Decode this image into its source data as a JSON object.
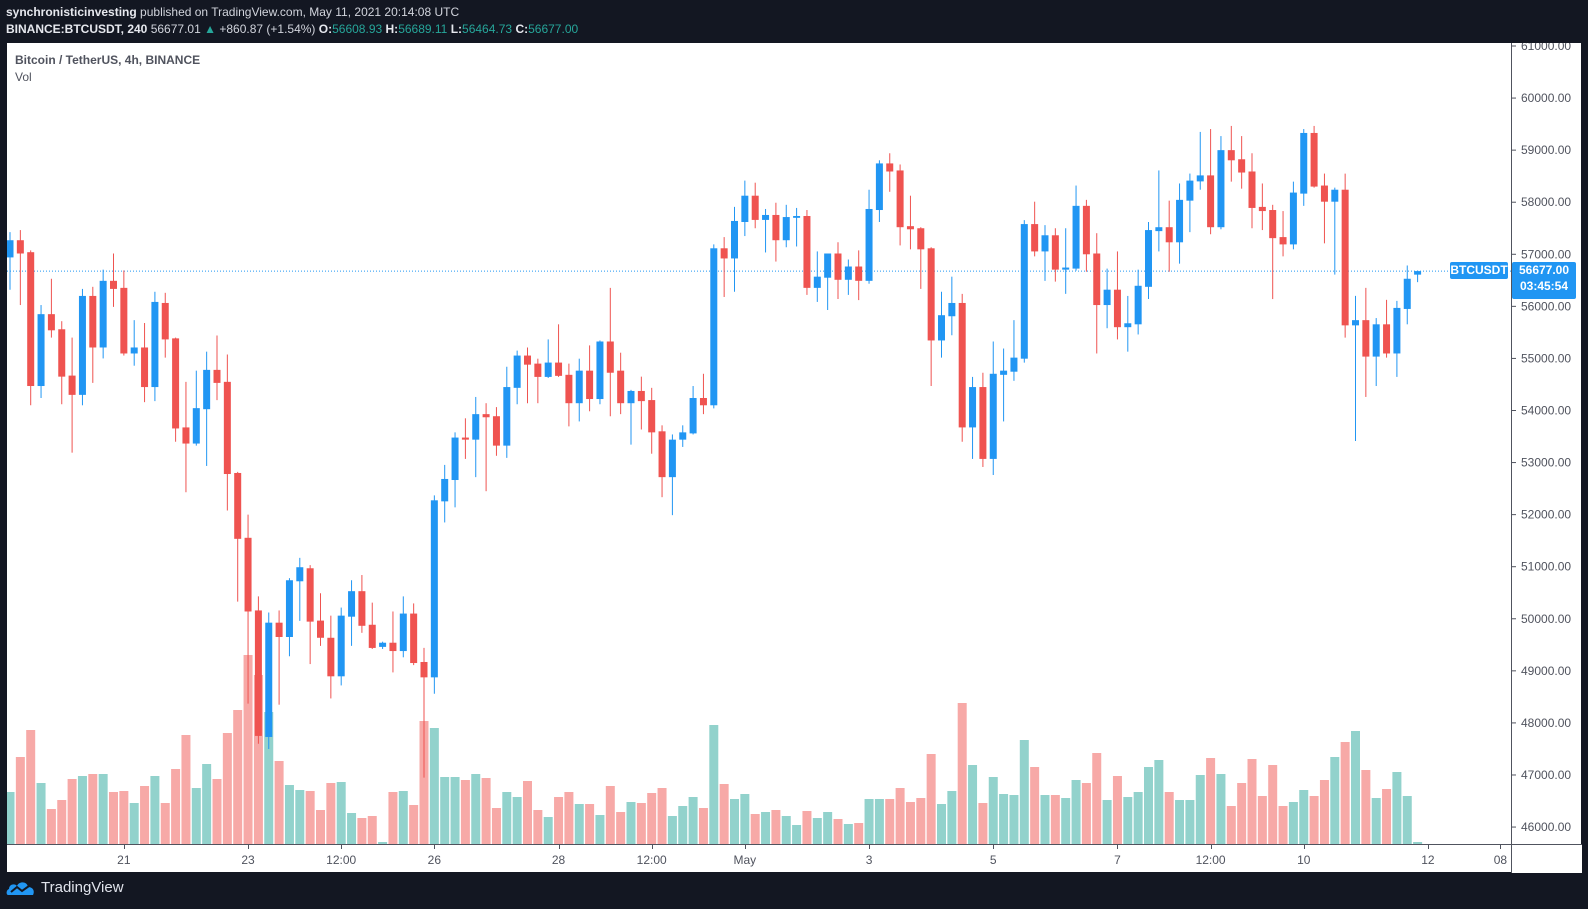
{
  "header": {
    "publisher": "synchronisticinvesting",
    "published_text": "published on TradingView.com, May 11, 2021 20:14:08 UTC",
    "symbol_interval": "BINANCE:BTCUSDT, 240",
    "last": "56677.01",
    "change_arrow": "▲",
    "change": "+860.87 (+1.54%)",
    "o_label": "O:",
    "o_value": "56608.93",
    "h_label": "H:",
    "h_value": "56689.11",
    "l_label": "L:",
    "l_value": "56464.73",
    "c_label": "C:",
    "c_value": "56677.00"
  },
  "legend": {
    "title": "Bitcoin / TetherUS, 4h, BINANCE",
    "volume": "Vol"
  },
  "last_price": {
    "symbol": "BTCUSDT",
    "price": "56677.00",
    "countdown": "03:45:54",
    "value": 56677
  },
  "footer": {
    "brand": "TradingView"
  },
  "colors": {
    "up": "#2196f3",
    "down": "#ef5350",
    "vol_up": "#92d2cc",
    "vol_down": "#f7a9a7",
    "accent": "#2196f3",
    "teal": "#26a69a"
  },
  "chart_data": {
    "type": "candlestick",
    "title": "Bitcoin / TetherUS, 4h, BINANCE",
    "ylim": [
      45600,
      61040
    ],
    "volume_units": "relative",
    "y_ticks": [
      {
        "value": 61000,
        "label": "61000.00"
      },
      {
        "value": 60000,
        "label": "60000.00"
      },
      {
        "value": 59000,
        "label": "59000.00"
      },
      {
        "value": 58000,
        "label": "58000.00"
      },
      {
        "value": 57000,
        "label": "57000.00"
      },
      {
        "value": 56000,
        "label": "56000.00"
      },
      {
        "value": 55000,
        "label": "55000.00"
      },
      {
        "value": 54000,
        "label": "54000.00"
      },
      {
        "value": 53000,
        "label": "53000.00"
      },
      {
        "value": 52000,
        "label": "52000.00"
      },
      {
        "value": 51000,
        "label": "51000.00"
      },
      {
        "value": 50000,
        "label": "50000.00"
      },
      {
        "value": 49000,
        "label": "49000.00"
      },
      {
        "value": 48000,
        "label": "48000.00"
      },
      {
        "value": 47000,
        "label": "47000.00"
      },
      {
        "value": 46000,
        "label": "46000.00"
      }
    ],
    "x_ticks": [
      {
        "index": 11,
        "label": "21"
      },
      {
        "index": 23,
        "label": "23"
      },
      {
        "index": 32,
        "label": "12:00"
      },
      {
        "index": 41,
        "label": "26"
      },
      {
        "index": 53,
        "label": "28"
      },
      {
        "index": 62,
        "label": "12:00"
      },
      {
        "index": 71,
        "label": "May"
      },
      {
        "index": 83,
        "label": "3"
      },
      {
        "index": 95,
        "label": "5"
      },
      {
        "index": 107,
        "label": "7"
      },
      {
        "index": 116,
        "label": "12:00"
      },
      {
        "index": 125,
        "label": "10"
      },
      {
        "index": 137,
        "label": "12"
      },
      {
        "index": 144,
        "label": "08"
      }
    ],
    "candles_ohlcv": [
      [
        56940,
        57425,
        56320,
        57270,
        52
      ],
      [
        57270,
        57465,
        56025,
        57015,
        87
      ],
      [
        57040,
        57075,
        54100,
        54470,
        114
      ],
      [
        54470,
        56025,
        54240,
        55850,
        61
      ],
      [
        55850,
        56530,
        55400,
        55540,
        35
      ],
      [
        55560,
        55715,
        54120,
        54650,
        44
      ],
      [
        54670,
        55400,
        53190,
        54300,
        65
      ],
      [
        54300,
        56335,
        54100,
        56200,
        68
      ],
      [
        56200,
        56375,
        54530,
        55210,
        70
      ],
      [
        55210,
        56705,
        55000,
        56490,
        70
      ],
      [
        56490,
        57015,
        55990,
        56335,
        52
      ],
      [
        56355,
        56690,
        55055,
        55095,
        53
      ],
      [
        55095,
        55735,
        54860,
        55210,
        41
      ],
      [
        55210,
        55680,
        54160,
        54450,
        58
      ],
      [
        54450,
        56280,
        54180,
        56085,
        68
      ],
      [
        56065,
        56260,
        55015,
        55365,
        41
      ],
      [
        55385,
        55400,
        53400,
        53655,
        75
      ],
      [
        53675,
        54550,
        52430,
        53365,
        109
      ],
      [
        53365,
        54765,
        53325,
        54045,
        56
      ],
      [
        54025,
        55130,
        52935,
        54780,
        80
      ],
      [
        54780,
        55440,
        54200,
        54530,
        65
      ],
      [
        54550,
        55075,
        52080,
        52780,
        111
      ],
      [
        52800,
        52820,
        50330,
        51535,
        134
      ],
      [
        51555,
        52000,
        48370,
        50140,
        189
      ],
      [
        50160,
        50430,
        47600,
        47750,
        169
      ],
      [
        47730,
        50120,
        47500,
        49925,
        132
      ],
      [
        49925,
        50160,
        48350,
        49650,
        83
      ],
      [
        49650,
        50780,
        49280,
        50740,
        59
      ],
      [
        50720,
        51170,
        49960,
        50990,
        54
      ],
      [
        50970,
        51030,
        49130,
        49945,
        53
      ],
      [
        49965,
        50490,
        49480,
        49635,
        34
      ],
      [
        49635,
        50060,
        48470,
        48895,
        61
      ],
      [
        48895,
        50215,
        48720,
        50060,
        62
      ],
      [
        50040,
        50740,
        49480,
        50530,
        31
      ],
      [
        50530,
        50840,
        49730,
        49865,
        26
      ],
      [
        49885,
        50310,
        49420,
        49440,
        28
      ],
      [
        49460,
        49560,
        49420,
        49540,
        2
      ],
      [
        49540,
        50140,
        48970,
        49380,
        52
      ],
      [
        49380,
        50430,
        49260,
        50100,
        53
      ],
      [
        50100,
        50295,
        49110,
        49150,
        39
      ],
      [
        49170,
        49440,
        46950,
        48875,
        123
      ],
      [
        48875,
        52370,
        48560,
        52275,
        116
      ],
      [
        52255,
        52955,
        51850,
        52685,
        67
      ],
      [
        52665,
        53580,
        52140,
        53480,
        67
      ],
      [
        53480,
        53850,
        53070,
        53440,
        64
      ],
      [
        53440,
        54260,
        52720,
        53930,
        70
      ],
      [
        53930,
        54140,
        52450,
        53870,
        66
      ],
      [
        53890,
        54065,
        53130,
        53325,
        36
      ],
      [
        53325,
        54840,
        53090,
        54450,
        52
      ],
      [
        54435,
        55150,
        54120,
        55055,
        47
      ],
      [
        55055,
        55210,
        54140,
        54880,
        63
      ],
      [
        54900,
        54995,
        54140,
        54645,
        34
      ],
      [
        54645,
        55365,
        54625,
        54920,
        27
      ],
      [
        54920,
        55655,
        54645,
        54665,
        47
      ],
      [
        54685,
        54900,
        53695,
        54140,
        52
      ],
      [
        54140,
        54995,
        53790,
        54765,
        40
      ],
      [
        54765,
        55250,
        53985,
        54220,
        40
      ],
      [
        54220,
        55345,
        54120,
        55325,
        29
      ],
      [
        55325,
        56355,
        53890,
        54725,
        58
      ],
      [
        54765,
        55110,
        53930,
        54140,
        32
      ],
      [
        54140,
        54395,
        53345,
        54375,
        42
      ],
      [
        54375,
        54650,
        53635,
        54180,
        41
      ],
      [
        54200,
        54435,
        53170,
        53580,
        51
      ],
      [
        53600,
        53715,
        52335,
        52720,
        56
      ],
      [
        52720,
        53540,
        51990,
        53440,
        28
      ],
      [
        53440,
        53715,
        53300,
        53580,
        38
      ],
      [
        53560,
        54470,
        53540,
        54240,
        47
      ],
      [
        54240,
        54705,
        53930,
        54100,
        36
      ],
      [
        54100,
        57190,
        54040,
        57115,
        119
      ],
      [
        57115,
        57330,
        56180,
        56920,
        60
      ],
      [
        56920,
        57910,
        56280,
        57640,
        45
      ],
      [
        57620,
        58415,
        57350,
        58125,
        50
      ],
      [
        58125,
        58375,
        57500,
        57660,
        30
      ],
      [
        57660,
        57870,
        57035,
        57755,
        32
      ],
      [
        57755,
        57990,
        56860,
        57270,
        34
      ],
      [
        57270,
        57950,
        57135,
        57715,
        28
      ],
      [
        57700,
        57890,
        57150,
        57735,
        19
      ],
      [
        57735,
        57850,
        56220,
        56355,
        33
      ],
      [
        56355,
        57055,
        56085,
        56570,
        26
      ],
      [
        56550,
        57015,
        55930,
        57015,
        32
      ],
      [
        57015,
        57230,
        56140,
        56510,
        25
      ],
      [
        56510,
        56900,
        56220,
        56765,
        20
      ],
      [
        56765,
        57075,
        56120,
        56490,
        21
      ],
      [
        56490,
        58240,
        56435,
        57870,
        45
      ],
      [
        57850,
        58805,
        57620,
        58745,
        45
      ],
      [
        58745,
        58940,
        58200,
        58590,
        45
      ],
      [
        58610,
        58725,
        57170,
        57520,
        56
      ],
      [
        57540,
        58125,
        57095,
        57480,
        42
      ],
      [
        57500,
        57520,
        56335,
        57095,
        46
      ],
      [
        57115,
        57135,
        54470,
        55345,
        90
      ],
      [
        55345,
        56280,
        55015,
        55830,
        40
      ],
      [
        55810,
        56570,
        55445,
        56065,
        53
      ],
      [
        56065,
        56240,
        53400,
        53675,
        141
      ],
      [
        53675,
        54645,
        53070,
        54450,
        79
      ],
      [
        54450,
        54725,
        52915,
        53070,
        41
      ],
      [
        53070,
        55325,
        52760,
        54705,
        67
      ],
      [
        54685,
        55190,
        53790,
        54765,
        50
      ],
      [
        54745,
        55735,
        54570,
        55015,
        49
      ],
      [
        54995,
        57655,
        54920,
        57580,
        104
      ],
      [
        57580,
        58010,
        56960,
        57055,
        77
      ],
      [
        57055,
        57560,
        56490,
        57365,
        49
      ],
      [
        57365,
        57500,
        56475,
        56705,
        49
      ],
      [
        56705,
        57500,
        56240,
        56745,
        46
      ],
      [
        56725,
        58320,
        56685,
        57930,
        64
      ],
      [
        57930,
        58045,
        56665,
        57000,
        61
      ],
      [
        57015,
        57405,
        55095,
        56025,
        91
      ],
      [
        56025,
        56725,
        55580,
        56320,
        44
      ],
      [
        56320,
        57055,
        55365,
        55600,
        68
      ],
      [
        55600,
        56200,
        55130,
        55675,
        47
      ],
      [
        55655,
        56705,
        55460,
        56395,
        52
      ],
      [
        56375,
        57620,
        56140,
        57465,
        77
      ],
      [
        57445,
        58610,
        57055,
        57520,
        84
      ],
      [
        57520,
        58030,
        56665,
        57230,
        52
      ],
      [
        57230,
        58360,
        56820,
        58045,
        44
      ],
      [
        58030,
        58550,
        57425,
        58415,
        44
      ],
      [
        58400,
        59350,
        58240,
        58515,
        69
      ],
      [
        58515,
        59405,
        57385,
        57520,
        86
      ],
      [
        57520,
        59270,
        57480,
        59000,
        70
      ],
      [
        59000,
        59465,
        58395,
        58805,
        38
      ],
      [
        58825,
        59270,
        58260,
        58570,
        61
      ],
      [
        58590,
        58940,
        57500,
        57890,
        85
      ],
      [
        57910,
        58360,
        57465,
        57830,
        48
      ],
      [
        57850,
        57950,
        56140,
        57310,
        79
      ],
      [
        57330,
        57830,
        56960,
        57190,
        38
      ],
      [
        57190,
        58395,
        57095,
        58185,
        42
      ],
      [
        58165,
        59405,
        57930,
        59330,
        54
      ],
      [
        59330,
        59465,
        58280,
        58300,
        48
      ],
      [
        58320,
        58550,
        57210,
        58010,
        64
      ],
      [
        58010,
        58280,
        56610,
        58240,
        87
      ],
      [
        58240,
        58550,
        55400,
        55635,
        102
      ],
      [
        55635,
        56200,
        53415,
        55735,
        113
      ],
      [
        55735,
        56355,
        54260,
        55035,
        74
      ],
      [
        55035,
        55775,
        54470,
        55655,
        46
      ],
      [
        55655,
        56125,
        55015,
        55095,
        55
      ],
      [
        55095,
        56105,
        54645,
        55970,
        72
      ],
      [
        55950,
        56785,
        55655,
        56530,
        48
      ],
      [
        56608.93,
        56689.11,
        56464.73,
        56677,
        2
      ]
    ]
  }
}
